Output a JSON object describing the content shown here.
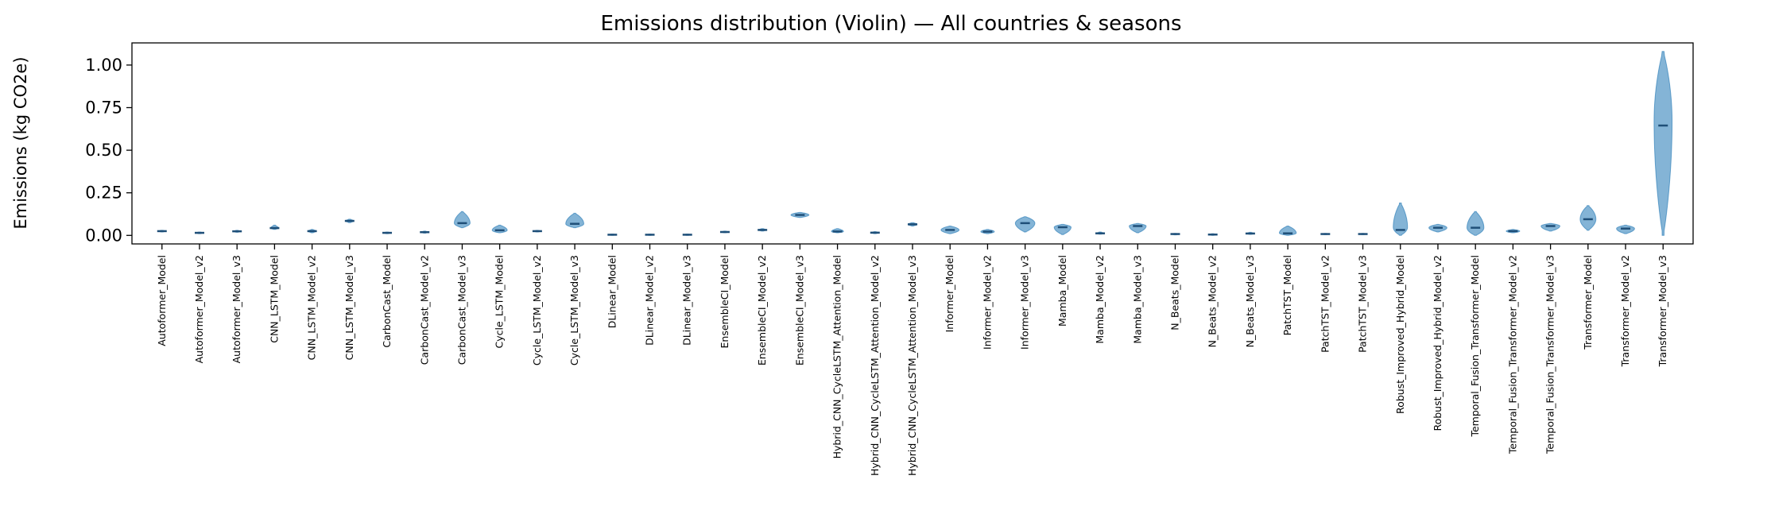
{
  "chart_data": {
    "type": "violin",
    "title": "Emissions distribution (Violin) — All countries & seasons",
    "xlabel": "",
    "ylabel": "Emissions (kg CO2e)",
    "ylim": [
      -0.05,
      1.13
    ],
    "yticks": [
      "0.00",
      "0.25",
      "0.50",
      "0.75",
      "1.00"
    ],
    "grid": false,
    "legend": "none",
    "colors": {
      "violin": "#1f77b4",
      "median": "#1f4f78"
    },
    "categories": [
      "Autoformer_Model",
      "Autoformer_Model_v2",
      "Autoformer_Model_v3",
      "CNN_LSTM_Model",
      "CNN_LSTM_Model_v2",
      "CNN_LSTM_Model_v3",
      "CarbonCast_Model",
      "CarbonCast_Model_v2",
      "CarbonCast_Model_v3",
      "Cycle_LSTM_Model",
      "Cycle_LSTM_Model_v2",
      "Cycle_LSTM_Model_v3",
      "DLinear_Model",
      "DLinear_Model_v2",
      "DLinear_Model_v3",
      "EnsembleCI_Model",
      "EnsembleCI_Model_v2",
      "EnsembleCI_Model_v3",
      "Hybrid_CNN_CycleLSTM_Attention_Model",
      "Hybrid_CNN_CycleLSTM_Attention_Model_v2",
      "Hybrid_CNN_CycleLSTM_Attention_Model_v3",
      "Informer_Model",
      "Informer_Model_v2",
      "Informer_Model_v3",
      "Mamba_Model",
      "Mamba_Model_v2",
      "Mamba_Model_v3",
      "N_Beats_Model",
      "N_Beats_Model_v2",
      "N_Beats_Model_v3",
      "PatchTST_Model",
      "PatchTST_Model_v2",
      "PatchTST_Model_v3",
      "Robust_Improved_Hybrid_Model",
      "Robust_Improved_Hybrid_Model_v2",
      "Temporal_Fusion_Transformer_Model",
      "Temporal_Fusion_Transformer_Model_v2",
      "Temporal_Fusion_Transformer_Model_v3",
      "Transformer_Model",
      "Transformer_Model_v2",
      "Transformer_Model_v3"
    ],
    "series": [
      {
        "min": 0.02,
        "max": 0.03,
        "median": 0.025,
        "maxwidth": 0.18
      },
      {
        "min": 0.01,
        "max": 0.02,
        "median": 0.015,
        "maxwidth": 0.17
      },
      {
        "min": 0.018,
        "max": 0.03,
        "median": 0.024,
        "maxwidth": 0.16
      },
      {
        "min": 0.035,
        "max": 0.06,
        "median": 0.043,
        "maxwidth": 0.2
      },
      {
        "min": 0.015,
        "max": 0.035,
        "median": 0.025,
        "maxwidth": 0.2
      },
      {
        "min": 0.075,
        "max": 0.095,
        "median": 0.085,
        "maxwidth": 0.2
      },
      {
        "min": 0.01,
        "max": 0.02,
        "median": 0.015,
        "maxwidth": 0.18
      },
      {
        "min": 0.013,
        "max": 0.025,
        "median": 0.019,
        "maxwidth": 0.18
      },
      {
        "min": 0.045,
        "max": 0.14,
        "median": 0.072,
        "maxwidth": 0.42
      },
      {
        "min": 0.015,
        "max": 0.06,
        "median": 0.03,
        "maxwidth": 0.4
      },
      {
        "min": 0.02,
        "max": 0.03,
        "median": 0.025,
        "maxwidth": 0.2
      },
      {
        "min": 0.045,
        "max": 0.13,
        "median": 0.068,
        "maxwidth": 0.48
      },
      {
        "min": 0.0,
        "max": 0.008,
        "median": 0.004,
        "maxwidth": 0.18
      },
      {
        "min": 0.0,
        "max": 0.008,
        "median": 0.004,
        "maxwidth": 0.18
      },
      {
        "min": 0.0,
        "max": 0.008,
        "median": 0.004,
        "maxwidth": 0.18
      },
      {
        "min": 0.015,
        "max": 0.025,
        "median": 0.02,
        "maxwidth": 0.18
      },
      {
        "min": 0.025,
        "max": 0.04,
        "median": 0.032,
        "maxwidth": 0.2
      },
      {
        "min": 0.105,
        "max": 0.135,
        "median": 0.12,
        "maxwidth": 0.48
      },
      {
        "min": 0.015,
        "max": 0.04,
        "median": 0.023,
        "maxwidth": 0.32
      },
      {
        "min": 0.01,
        "max": 0.022,
        "median": 0.016,
        "maxwidth": 0.2
      },
      {
        "min": 0.055,
        "max": 0.075,
        "median": 0.065,
        "maxwidth": 0.24
      },
      {
        "min": 0.01,
        "max": 0.055,
        "median": 0.032,
        "maxwidth": 0.48
      },
      {
        "min": 0.01,
        "max": 0.035,
        "median": 0.022,
        "maxwidth": 0.36
      },
      {
        "min": 0.02,
        "max": 0.11,
        "median": 0.072,
        "maxwidth": 0.52
      },
      {
        "min": 0.005,
        "max": 0.065,
        "median": 0.048,
        "maxwidth": 0.45
      },
      {
        "min": 0.007,
        "max": 0.02,
        "median": 0.012,
        "maxwidth": 0.18
      },
      {
        "min": 0.015,
        "max": 0.07,
        "median": 0.055,
        "maxwidth": 0.45
      },
      {
        "min": 0.003,
        "max": 0.012,
        "median": 0.008,
        "maxwidth": 0.18
      },
      {
        "min": 0.0,
        "max": 0.01,
        "median": 0.005,
        "maxwidth": 0.16
      },
      {
        "min": 0.006,
        "max": 0.018,
        "median": 0.011,
        "maxwidth": 0.2
      },
      {
        "min": 0.0,
        "max": 0.055,
        "median": 0.012,
        "maxwidth": 0.45
      },
      {
        "min": 0.004,
        "max": 0.012,
        "median": 0.008,
        "maxwidth": 0.16
      },
      {
        "min": 0.004,
        "max": 0.012,
        "median": 0.008,
        "maxwidth": 0.16
      },
      {
        "min": 0.0,
        "max": 0.19,
        "median": 0.032,
        "maxwidth": 0.38
      },
      {
        "min": 0.02,
        "max": 0.065,
        "median": 0.045,
        "maxwidth": 0.48
      },
      {
        "min": 0.0,
        "max": 0.14,
        "median": 0.045,
        "maxwidth": 0.45
      },
      {
        "min": 0.015,
        "max": 0.035,
        "median": 0.025,
        "maxwidth": 0.36
      },
      {
        "min": 0.025,
        "max": 0.07,
        "median": 0.055,
        "maxwidth": 0.5
      },
      {
        "min": 0.03,
        "max": 0.175,
        "median": 0.095,
        "maxwidth": 0.42
      },
      {
        "min": 0.01,
        "max": 0.06,
        "median": 0.04,
        "maxwidth": 0.48
      },
      {
        "min": 0.0,
        "max": 1.08,
        "median": 0.645,
        "maxwidth": 0.48,
        "peak": 0.62
      }
    ]
  }
}
